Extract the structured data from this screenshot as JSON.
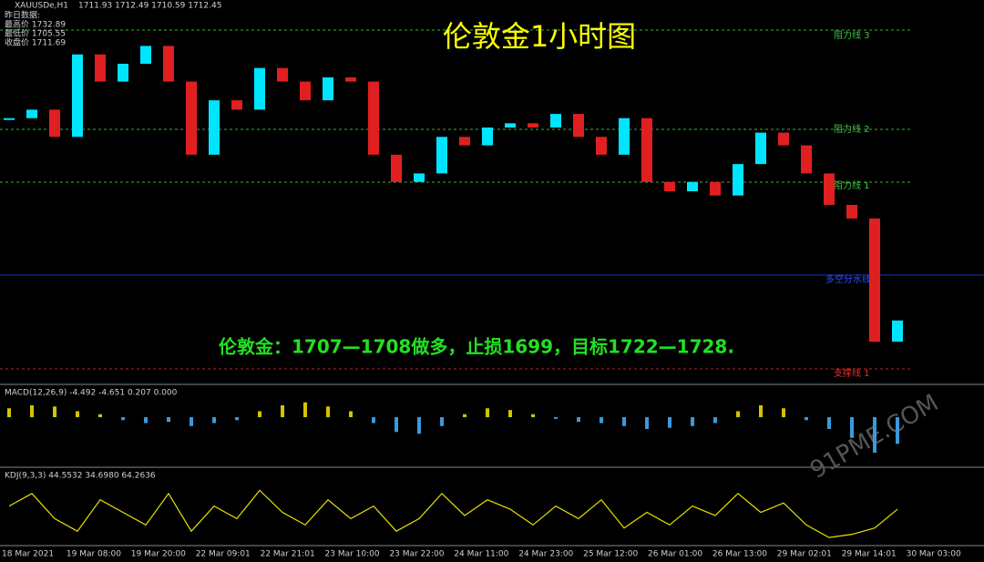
{
  "header": {
    "symbol": "XAUUSDe,H1",
    "ohlc": "1711.93 1712.49 1710.59 1712.45",
    "info_title": "昨日数据:",
    "info_lines": [
      "最高价 1732.89",
      "最低价 1705.55",
      "收盘价 1711.69"
    ]
  },
  "levels": [
    "阻力线 3",
    "阻力线 2",
    "阻力线 1",
    "多空分水线",
    "支撑线 1"
  ],
  "watermark": "91PME.COM",
  "chart_data": [
    {
      "type": "candlestick",
      "title": "伦敦金1小时图",
      "annotation": "伦敦金：1707—1708做多，止损1699，目标1722—1728.",
      "x_labels": [
        "18 Mar 2021",
        "19 Mar 08:00",
        "19 Mar 20:00",
        "22 Mar 09:01",
        "22 Mar 21:01",
        "23 Mar 10:00",
        "23 Mar 22:00",
        "24 Mar 11:00",
        "24 Mar 23:00",
        "25 Mar 12:00",
        "26 Mar 01:00",
        "26 Mar 13:00",
        "29 Mar 02:01",
        "29 Mar 14:01",
        "30 Mar 03:00"
      ],
      "ylim": [
        1700,
        1745
      ],
      "up_color": "#00e5ff",
      "down_color": "#e02020",
      "values": [
        1731.1,
        1732.1,
        1728.9,
        1738.6,
        1735.4,
        1737.5,
        1739.6,
        1735.4,
        1726.8,
        1733.2,
        1732.1,
        1737.0,
        1735.4,
        1733.2,
        1735.9,
        1735.4,
        1726.8,
        1723.6,
        1724.6,
        1728.9,
        1727.9,
        1730.0,
        1730.5,
        1730.0,
        1731.6,
        1728.9,
        1726.8,
        1731.1,
        1723.6,
        1722.5,
        1723.6,
        1722.0,
        1725.7,
        1729.4,
        1727.9,
        1724.6,
        1720.9,
        1719.3,
        1704.8,
        1707.3
      ]
    },
    {
      "type": "bar",
      "title": "MACD(12,26,9) -4.492 -4.651 0.207 0.000",
      "ylim": [
        -8,
        4
      ],
      "up_color": "#d4c400",
      "down_color": "#3a9ad9",
      "values": [
        1.5,
        2,
        1.8,
        1,
        0.5,
        -0.5,
        -1,
        -0.8,
        -1.5,
        -1,
        -0.5,
        1,
        2,
        2.5,
        1.8,
        1,
        -1,
        -2.5,
        -2.8,
        -1.5,
        0.5,
        1.5,
        1.2,
        0.5,
        -0.3,
        -0.8,
        -1,
        -1.5,
        -2,
        -1.8,
        -1.5,
        -1,
        1,
        2,
        1.5,
        -0.5,
        -2,
        -3.5,
        -6,
        -4.5
      ]
    },
    {
      "type": "line",
      "title": "KDJ(9,3,3) 44.5532 34.6980 64.2636",
      "ylim": [
        0,
        100
      ],
      "color": "#e8e000",
      "values": [
        60,
        80,
        40,
        20,
        70,
        50,
        30,
        80,
        20,
        60,
        40,
        85,
        50,
        30,
        70,
        40,
        60,
        20,
        40,
        80,
        45,
        70,
        55,
        30,
        60,
        40,
        70,
        25,
        50,
        30,
        60,
        45,
        80,
        50,
        65,
        30,
        10,
        15,
        25,
        55
      ]
    }
  ]
}
